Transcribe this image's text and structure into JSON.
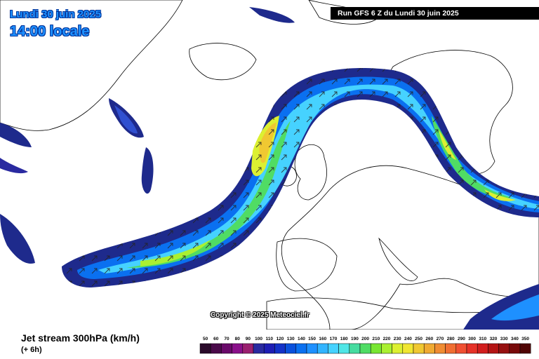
{
  "header": {
    "date": "Lundi 30 juin 2025",
    "local_time": "14:00 locale",
    "run_banner": "Run GFS 6 Z du Lundi 30 juin 2025"
  },
  "map": {
    "copyright": "Copyright © 2025 Meteociel.fr",
    "land_color": "#ffffff",
    "coastline_color": "#000000"
  },
  "footer": {
    "title": "Jet stream 300hPa (km/h)",
    "subtitle": "(+ 6h)"
  },
  "legend": {
    "values": [
      "50",
      "60",
      "70",
      "80",
      "90",
      "100",
      "110",
      "120",
      "130",
      "140",
      "150",
      "160",
      "170",
      "180",
      "190",
      "200",
      "210",
      "220",
      "230",
      "240",
      "250",
      "260",
      "270",
      "280",
      "290",
      "300",
      "310",
      "320",
      "330",
      "340",
      "350"
    ],
    "colors": [
      "#2a0a2a",
      "#4a0a4a",
      "#6a0a6a",
      "#8a108a",
      "#9a2070",
      "#2a2aa0",
      "#1e1eb4",
      "#1432c8",
      "#0a50dc",
      "#0a70f0",
      "#1e90ff",
      "#32b4ff",
      "#46d2ff",
      "#50e6e6",
      "#46dca0",
      "#50dc64",
      "#78e632",
      "#aaf032",
      "#dcf032",
      "#f0e632",
      "#f0c832",
      "#f0aa32",
      "#f08c32",
      "#f06e32",
      "#f05032",
      "#e63228",
      "#d21e1e",
      "#b41414",
      "#961010",
      "#780a0a",
      "#500505"
    ]
  }
}
